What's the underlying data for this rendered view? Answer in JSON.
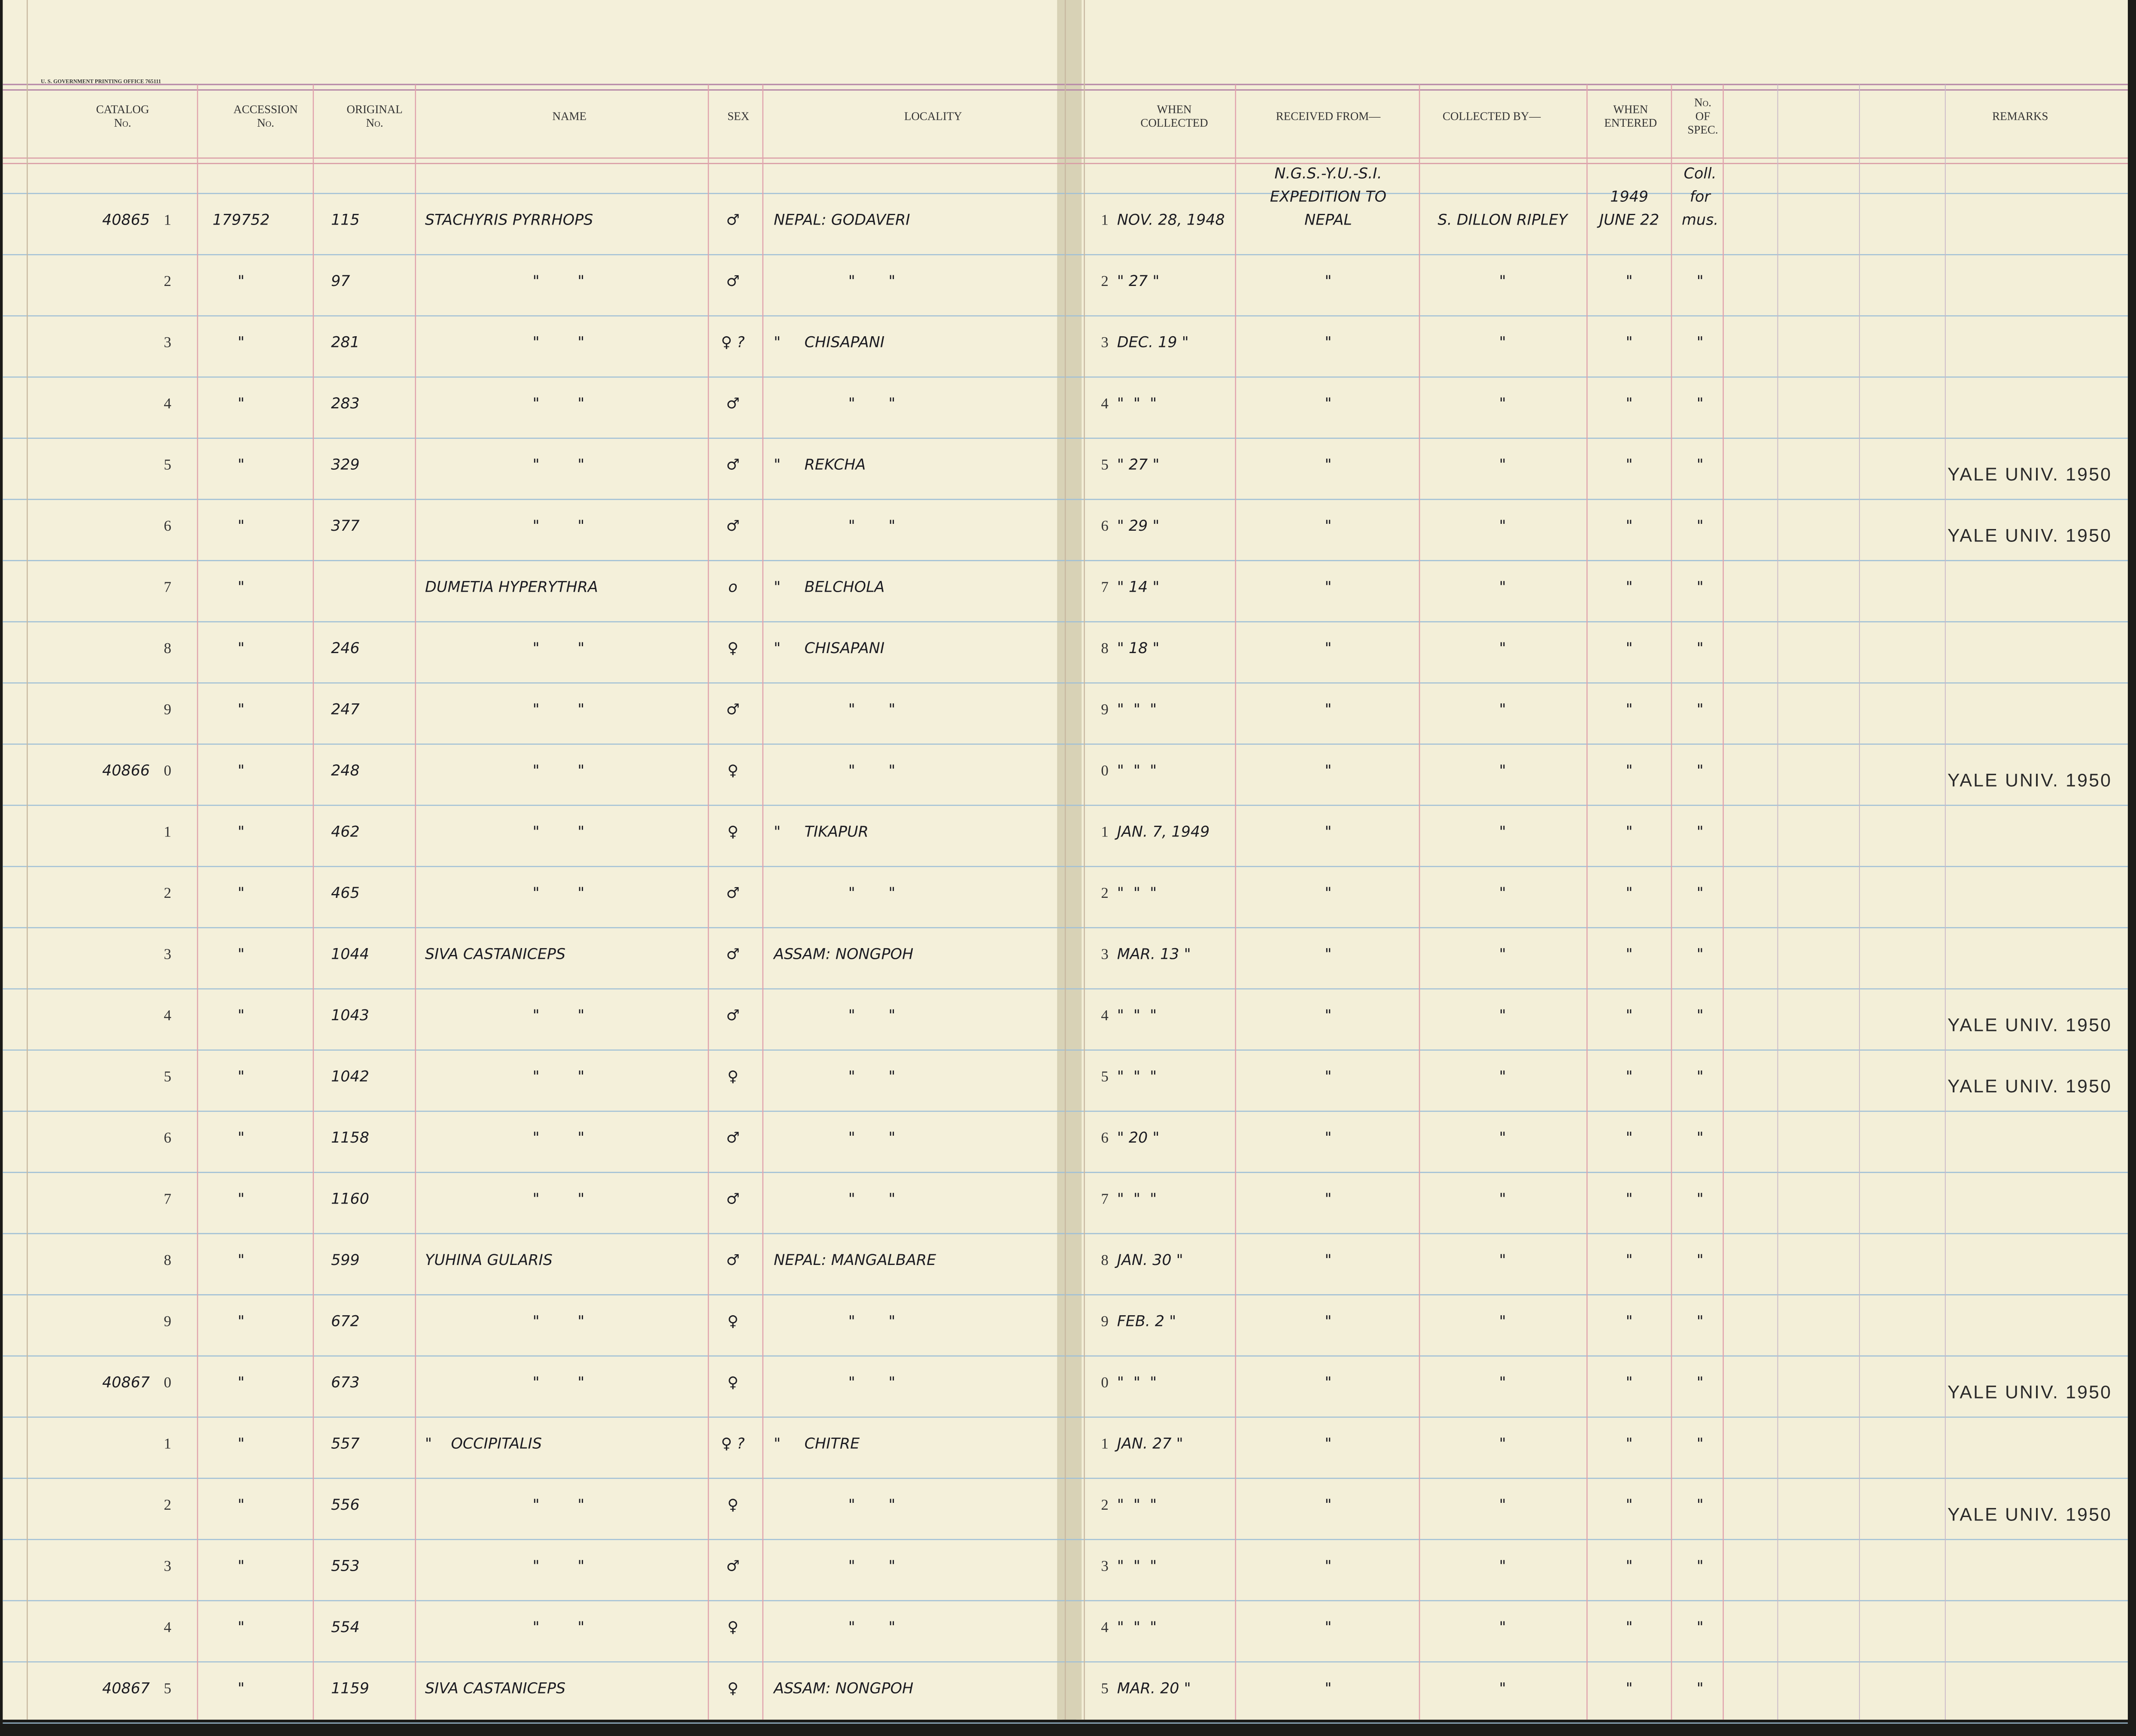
{
  "header": {
    "printer": "U. S. GOVERNMENT PRINTING OFFICE 765111",
    "columns": {
      "catalog": [
        "CATALOG",
        "No."
      ],
      "accession": [
        "ACCESSION",
        "No."
      ],
      "original": [
        "ORIGINAL",
        "No."
      ],
      "name": [
        "NAME"
      ],
      "sex": [
        "SEX"
      ],
      "locality": [
        "LOCALITY"
      ],
      "when_collected": [
        "WHEN",
        "COLLECTED"
      ],
      "received_from": [
        "RECEIVED FROM—"
      ],
      "collected_by": [
        "COLLECTED BY—"
      ],
      "when_entered": [
        "WHEN",
        "ENTERED"
      ],
      "no_of_spec": [
        "No.",
        "OF",
        "SPEC."
      ],
      "remarks": [
        "REMARKS"
      ]
    }
  },
  "rows": [
    {
      "catalog": "40865",
      "digit": "1",
      "accession": "179752",
      "original": "115",
      "name": "STACHYRIS PYRRHOPS",
      "sex": "♂",
      "locality": "NEPAL: GODAVERI",
      "digit_right": "1",
      "when_collected": "NOV. 28, 1948",
      "received_from": [
        "N.G.S.-Y.U.-S.I.",
        "EXPEDITION TO",
        "NEPAL"
      ],
      "collected_by": "S. DILLON RIPLEY",
      "when_entered": [
        "1949",
        "JUNE 22"
      ],
      "no_of_spec": [
        "Coll.",
        "for",
        "mus."
      ]
    },
    {
      "digit": "2",
      "accession": "\"",
      "original": "97",
      "name": "\"        \"",
      "sex": "♂",
      "locality": "\"       \"",
      "digit_right": "2",
      "when_collected": "\" 27 \"",
      "received_from": "\"",
      "collected_by": "\"",
      "when_entered": "\"",
      "no_of_spec": "\""
    },
    {
      "digit": "3",
      "accession": "\"",
      "original": "281",
      "name": "\"        \"",
      "sex": "♀ ?",
      "locality": "\"     CHISAPANI",
      "digit_right": "3",
      "when_collected": "DEC. 19 \"",
      "received_from": "\"",
      "collected_by": "\"",
      "when_entered": "\"",
      "no_of_spec": "\""
    },
    {
      "digit": "4",
      "accession": "\"",
      "original": "283",
      "name": "\"        \"",
      "sex": "♂",
      "locality": "\"       \"",
      "digit_right": "4",
      "when_collected": "\"  \"  \"",
      "received_from": "\"",
      "collected_by": "\"",
      "when_entered": "\"",
      "no_of_spec": "\""
    },
    {
      "digit": "5",
      "accession": "\"",
      "original": "329",
      "name": "\"        \"",
      "sex": "♂",
      "locality": "\"     REKCHA",
      "digit_right": "5",
      "when_collected": "\" 27 \"",
      "received_from": "\"",
      "collected_by": "\"",
      "when_entered": "\"",
      "no_of_spec": "\"",
      "remarks": "YALE UNIV. 1950"
    },
    {
      "digit": "6",
      "accession": "\"",
      "original": "377",
      "name": "\"        \"",
      "sex": "♂",
      "locality": "\"       \"",
      "digit_right": "6",
      "when_collected": "\" 29 \"",
      "received_from": "\"",
      "collected_by": "\"",
      "when_entered": "\"",
      "no_of_spec": "\"",
      "remarks": "YALE UNIV. 1950"
    },
    {
      "digit": "7",
      "accession": "\"",
      "name": "DUMETIA HYPERYTHRA",
      "sex": "o",
      "locality": "\"     BELCHOLA",
      "digit_right": "7",
      "when_collected": "\" 14 \"",
      "received_from": "\"",
      "collected_by": "\"",
      "when_entered": "\"",
      "no_of_spec": "\""
    },
    {
      "digit": "8",
      "accession": "\"",
      "original": "246",
      "name": "\"        \"",
      "sex": "♀",
      "locality": "\"     CHISAPANI",
      "digit_right": "8",
      "when_collected": "\" 18 \"",
      "received_from": "\"",
      "collected_by": "\"",
      "when_entered": "\"",
      "no_of_spec": "\""
    },
    {
      "digit": "9",
      "accession": "\"",
      "original": "247",
      "name": "\"        \"",
      "sex": "♂",
      "locality": "\"       \"",
      "digit_right": "9",
      "when_collected": "\"  \"  \"",
      "received_from": "\"",
      "collected_by": "\"",
      "when_entered": "\"",
      "no_of_spec": "\""
    },
    {
      "catalog": "40866",
      "digit": "0",
      "accession": "\"",
      "original": "248",
      "name": "\"        \"",
      "sex": "♀",
      "locality": "\"       \"",
      "digit_right": "0",
      "when_collected": "\"  \"  \"",
      "received_from": "\"",
      "collected_by": "\"",
      "when_entered": "\"",
      "no_of_spec": "\"",
      "remarks": "YALE UNIV. 1950"
    },
    {
      "digit": "1",
      "accession": "\"",
      "original": "462",
      "name": "\"        \"",
      "sex": "♀",
      "locality": "\"     TIKAPUR",
      "digit_right": "1",
      "when_collected": "JAN. 7, 1949",
      "received_from": "\"",
      "collected_by": "\"",
      "when_entered": "\"",
      "no_of_spec": "\""
    },
    {
      "digit": "2",
      "accession": "\"",
      "original": "465",
      "name": "\"        \"",
      "sex": "♂",
      "locality": "\"       \"",
      "digit_right": "2",
      "when_collected": "\"  \"  \"",
      "received_from": "\"",
      "collected_by": "\"",
      "when_entered": "\"",
      "no_of_spec": "\""
    },
    {
      "digit": "3",
      "accession": "\"",
      "original": "1044",
      "name": "SIVA CASTANICEPS",
      "sex": "♂",
      "locality": "ASSAM: NONGPOH",
      "digit_right": "3",
      "when_collected": "MAR. 13 \"",
      "received_from": "\"",
      "collected_by": "\"",
      "when_entered": "\"",
      "no_of_spec": "\""
    },
    {
      "digit": "4",
      "accession": "\"",
      "original": "1043",
      "name": "\"        \"",
      "sex": "♂",
      "locality": "\"       \"",
      "digit_right": "4",
      "when_collected": "\"  \"  \"",
      "received_from": "\"",
      "collected_by": "\"",
      "when_entered": "\"",
      "no_of_spec": "\"",
      "remarks": "YALE UNIV. 1950"
    },
    {
      "digit": "5",
      "accession": "\"",
      "original": "1042",
      "name": "\"        \"",
      "sex": "♀",
      "locality": "\"       \"",
      "digit_right": "5",
      "when_collected": "\"  \"  \"",
      "received_from": "\"",
      "collected_by": "\"",
      "when_entered": "\"",
      "no_of_spec": "\"",
      "remarks": "YALE UNIV. 1950"
    },
    {
      "digit": "6",
      "accession": "\"",
      "original": "1158",
      "name": "\"        \"",
      "sex": "♂",
      "locality": "\"       \"",
      "digit_right": "6",
      "when_collected": "\" 20 \"",
      "received_from": "\"",
      "collected_by": "\"",
      "when_entered": "\"",
      "no_of_spec": "\""
    },
    {
      "digit": "7",
      "accession": "\"",
      "original": "1160",
      "name": "\"        \"",
      "sex": "♂",
      "locality": "\"       \"",
      "digit_right": "7",
      "when_collected": "\"  \"  \"",
      "received_from": "\"",
      "collected_by": "\"",
      "when_entered": "\"",
      "no_of_spec": "\""
    },
    {
      "digit": "8",
      "accession": "\"",
      "original": "599",
      "name": "YUHINA GULARIS",
      "sex": "♂",
      "locality": "NEPAL: MANGALBARE",
      "digit_right": "8",
      "when_collected": "JAN. 30 \"",
      "received_from": "\"",
      "collected_by": "\"",
      "when_entered": "\"",
      "no_of_spec": "\""
    },
    {
      "digit": "9",
      "accession": "\"",
      "original": "672",
      "name": "\"        \"",
      "sex": "♀",
      "locality": "\"       \"",
      "digit_right": "9",
      "when_collected": "FEB. 2 \"",
      "received_from": "\"",
      "collected_by": "\"",
      "when_entered": "\"",
      "no_of_spec": "\""
    },
    {
      "catalog": "40867",
      "digit": "0",
      "accession": "\"",
      "original": "673",
      "name": "\"        \"",
      "sex": "♀",
      "locality": "\"       \"",
      "digit_right": "0",
      "when_collected": "\"  \"  \"",
      "received_from": "\"",
      "collected_by": "\"",
      "when_entered": "\"",
      "no_of_spec": "\"",
      "remarks": "YALE UNIV. 1950"
    },
    {
      "digit": "1",
      "accession": "\"",
      "original": "557",
      "name": "\"    OCCIPITALIS",
      "sex": "♀ ?",
      "locality": "\"     CHITRE",
      "digit_right": "1",
      "when_collected": "JAN. 27 \"",
      "received_from": "\"",
      "collected_by": "\"",
      "when_entered": "\"",
      "no_of_spec": "\""
    },
    {
      "digit": "2",
      "accession": "\"",
      "original": "556",
      "name": "\"        \"",
      "sex": "♀",
      "locality": "\"       \"",
      "digit_right": "2",
      "when_collected": "\"  \"  \"",
      "received_from": "\"",
      "collected_by": "\"",
      "when_entered": "\"",
      "no_of_spec": "\"",
      "remarks": "YALE UNIV. 1950"
    },
    {
      "digit": "3",
      "accession": "\"",
      "original": "553",
      "name": "\"        \"",
      "sex": "♂",
      "locality": "\"       \"",
      "digit_right": "3",
      "when_collected": "\"  \"  \"",
      "received_from": "\"",
      "collected_by": "\"",
      "when_entered": "\"",
      "no_of_spec": "\""
    },
    {
      "digit": "4",
      "accession": "\"",
      "original": "554",
      "name": "\"        \"",
      "sex": "♀",
      "locality": "\"       \"",
      "digit_right": "4",
      "when_collected": "\"  \"  \"",
      "received_from": "\"",
      "collected_by": "\"",
      "when_entered": "\"",
      "no_of_spec": "\""
    },
    {
      "catalog": "40867",
      "digit": "5",
      "accession": "\"",
      "original": "1159",
      "name": "SIVA CASTANICEPS",
      "sex": "♀",
      "locality": "ASSAM: NONGPOH",
      "digit_right": "5",
      "when_collected": "MAR. 20 \"",
      "received_from": "\"",
      "collected_by": "\"",
      "when_entered": "\"",
      "no_of_spec": "\""
    }
  ]
}
